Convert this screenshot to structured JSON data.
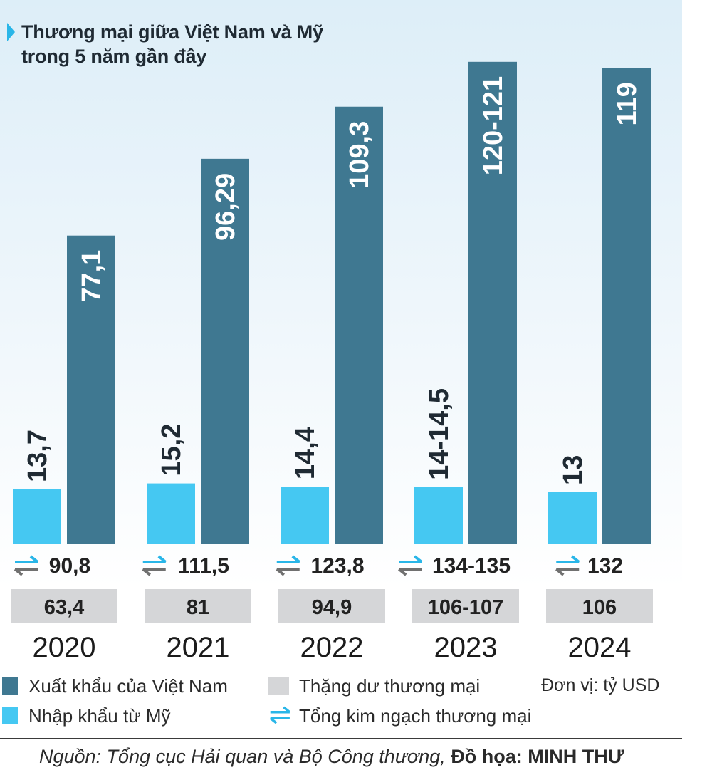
{
  "title_line1": "Thương mại giữa Việt Nam và Mỹ",
  "title_line2": "trong 5 năm gần đây",
  "chart_data": {
    "type": "bar",
    "categories": [
      "2020",
      "2021",
      "2022",
      "2023",
      "2024"
    ],
    "series": [
      {
        "name": "Nhập khẩu từ Mỹ",
        "values": [
          13.7,
          15.2,
          14.4,
          14.25,
          13
        ],
        "labels": [
          "13,7",
          "15,2",
          "14,4",
          "14-14,5",
          "13"
        ],
        "color": "#45c8f2"
      },
      {
        "name": "Xuất khẩu của Việt Nam",
        "values": [
          77.1,
          96.29,
          109.3,
          120.5,
          119
        ],
        "labels": [
          "77,1",
          "96,29",
          "109,3",
          "120-121",
          "119"
        ],
        "color": "#3f7891"
      }
    ],
    "totals": {
      "name": "Tổng kim ngạch thương mại",
      "values": [
        90.8,
        111.5,
        123.8,
        134.5,
        132
      ],
      "labels": [
        "90,8",
        "111,5",
        "123,8",
        "134-135",
        "132"
      ]
    },
    "surplus": {
      "name": "Thặng dư thương mại",
      "values": [
        63.4,
        81,
        94.9,
        106.5,
        106
      ],
      "labels": [
        "63,4",
        "81",
        "94,9",
        "106-107",
        "106"
      ],
      "color": "#d5d6d8"
    },
    "ylim": [
      0,
      121
    ],
    "grid": false
  },
  "legend": {
    "export": "Xuất khẩu của Việt Nam",
    "import": "Nhập khẩu từ Mỹ",
    "surplus": "Thặng dư thương mại",
    "total": "Tổng kim ngạch thương mại"
  },
  "unit": "Đơn vị: tỷ USD",
  "source": "Nguồn: Tổng cục Hải quan và Bộ Công thương,",
  "credit": "Đồ họa: MINH THƯ",
  "icons": {
    "total": "swap-arrows-icon",
    "title": "triangle-marker-icon"
  }
}
